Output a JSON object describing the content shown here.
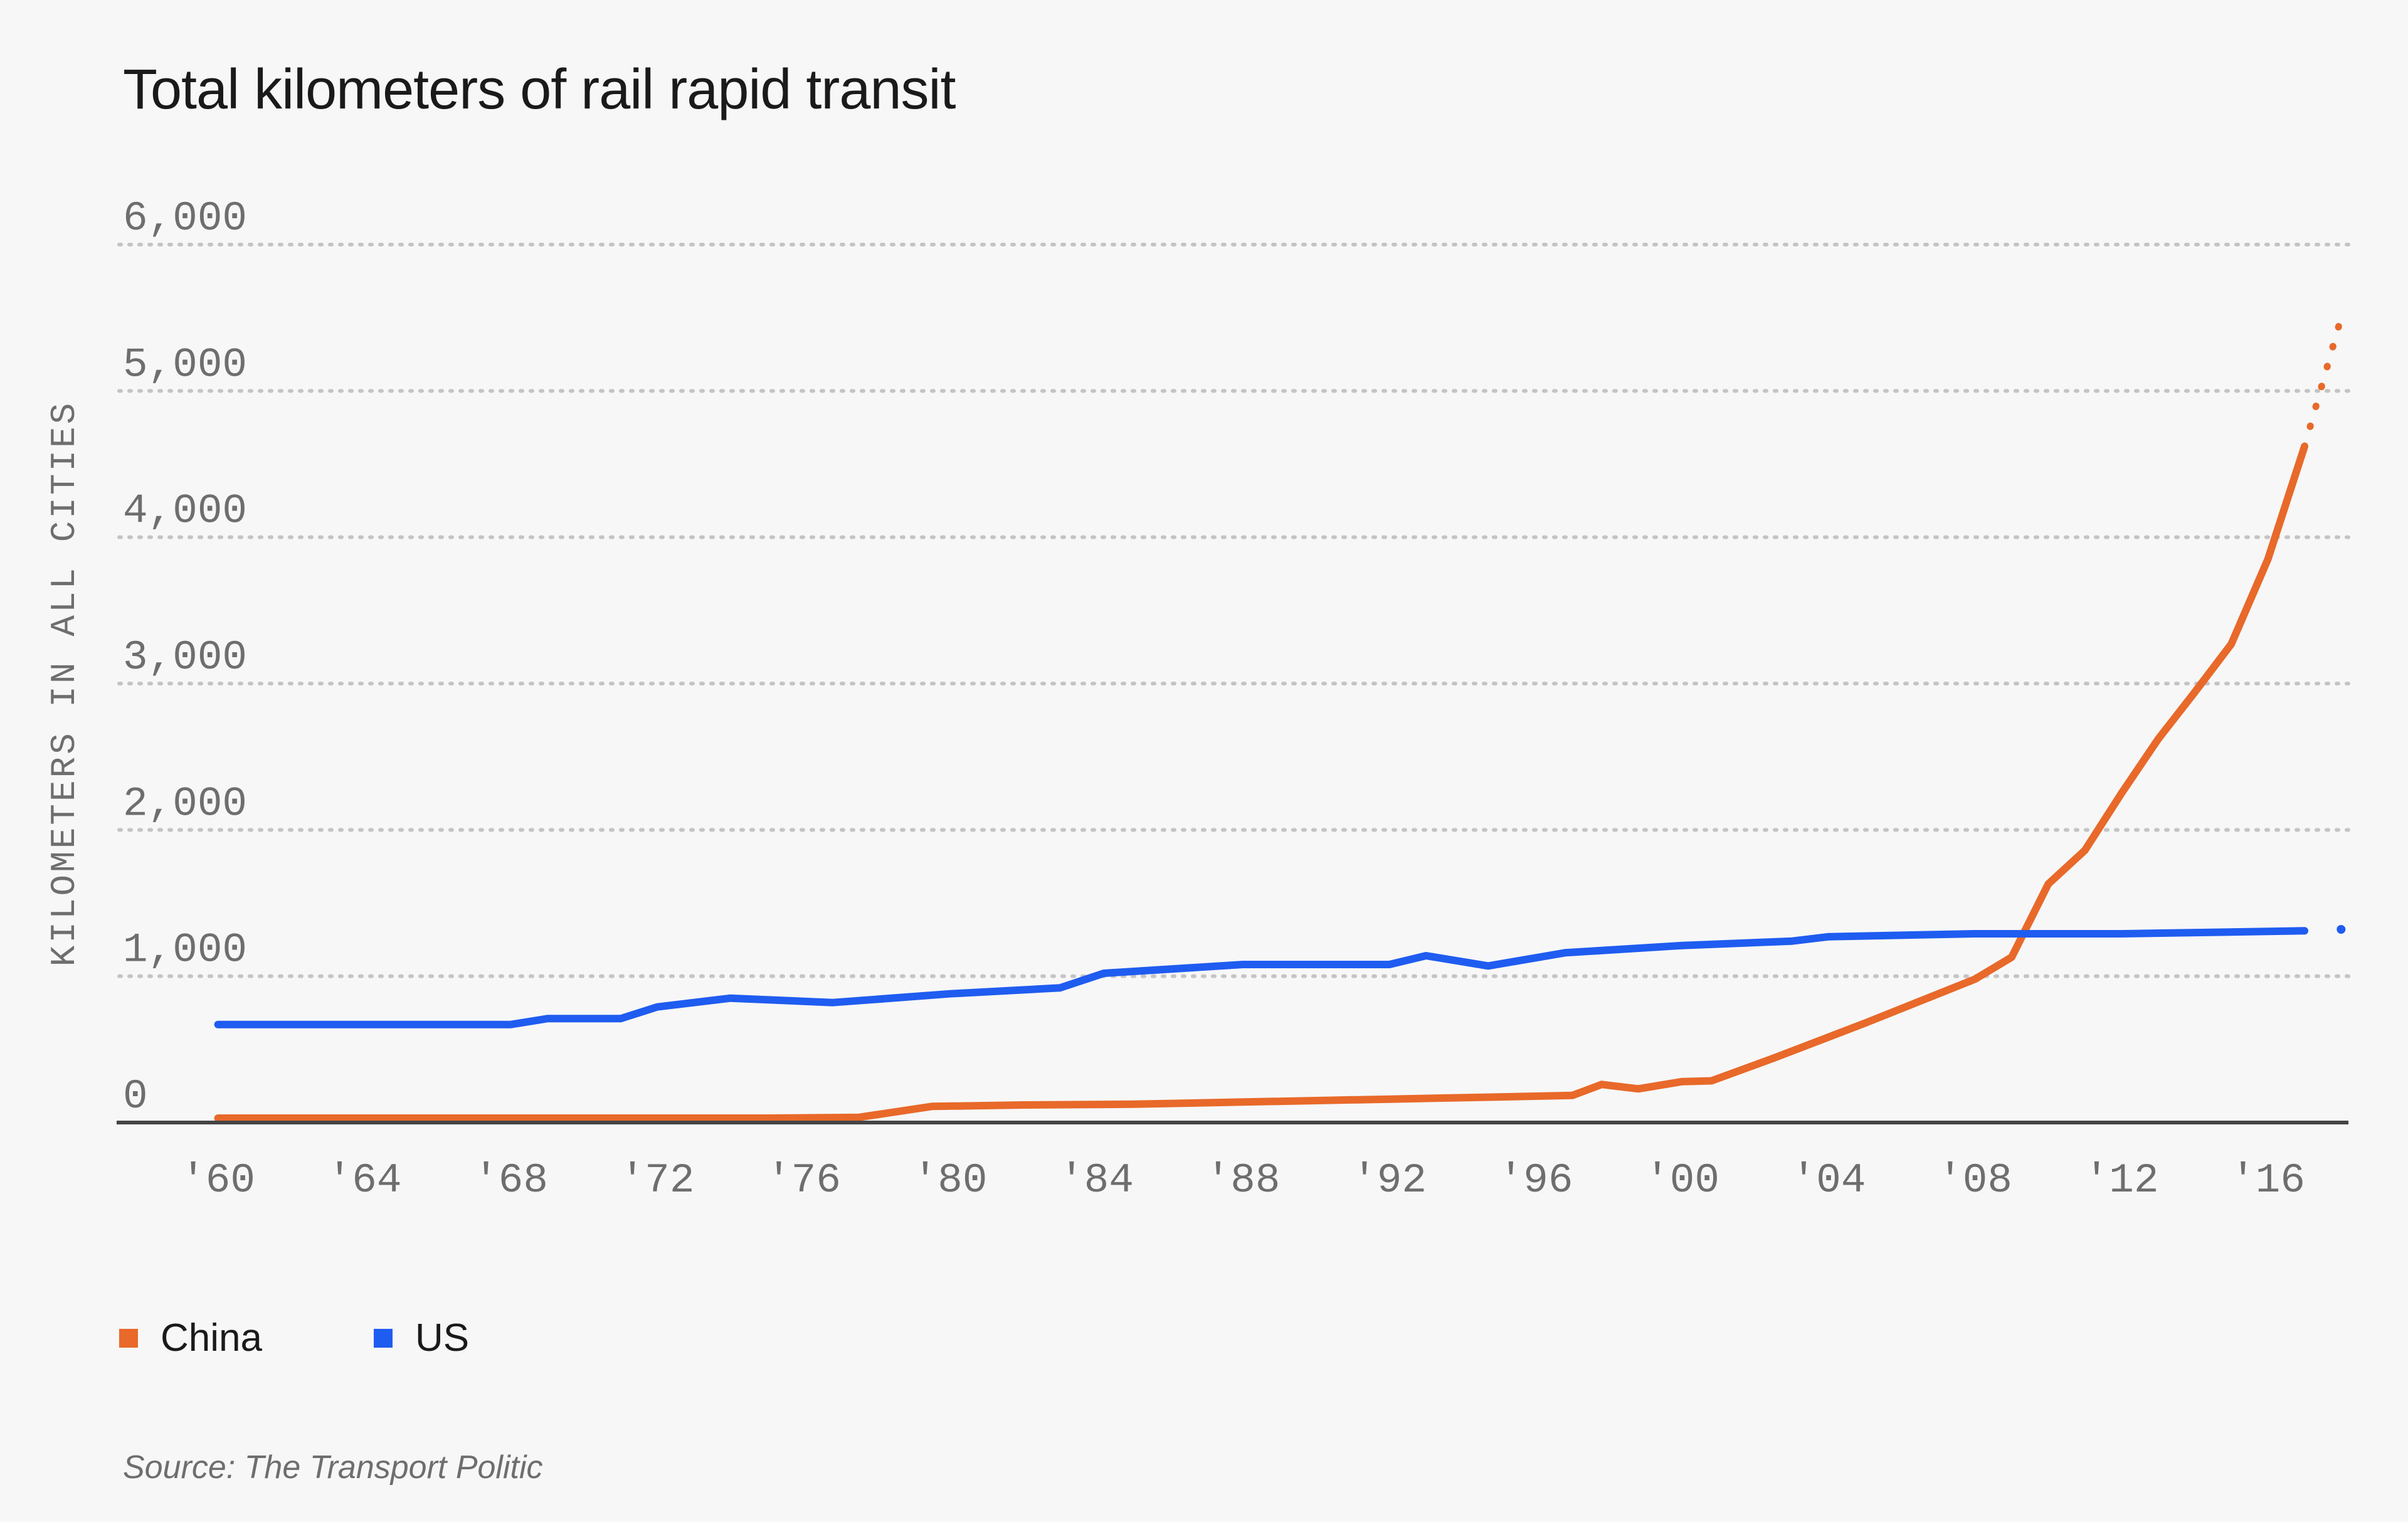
{
  "title": "Total kilometers of rail rapid transit",
  "source": "Source: The Transport Politic",
  "chart_data": {
    "type": "line",
    "title": "Total kilometers of rail rapid transit",
    "xlabel": "",
    "ylabel": "KILOMETERS IN ALL CITIES",
    "xlim": [
      1957.3,
      2018.2
    ],
    "ylim": [
      0,
      6000
    ],
    "x_ticks": [
      {
        "value": 1960,
        "label": "'60"
      },
      {
        "value": 1964,
        "label": "'64"
      },
      {
        "value": 1968,
        "label": "'68"
      },
      {
        "value": 1972,
        "label": "'72"
      },
      {
        "value": 1976,
        "label": "'76"
      },
      {
        "value": 1980,
        "label": "'80"
      },
      {
        "value": 1984,
        "label": "'84"
      },
      {
        "value": 1988,
        "label": "'88"
      },
      {
        "value": 1992,
        "label": "'92"
      },
      {
        "value": 1996,
        "label": "'96"
      },
      {
        "value": 2000,
        "label": "'00"
      },
      {
        "value": 2004,
        "label": "'04"
      },
      {
        "value": 2008,
        "label": "'08"
      },
      {
        "value": 2012,
        "label": "'12"
      },
      {
        "value": 2016,
        "label": "'16"
      }
    ],
    "y_ticks": [
      {
        "value": 0,
        "label": "0"
      },
      {
        "value": 1000,
        "label": "1,000"
      },
      {
        "value": 2000,
        "label": "2,000"
      },
      {
        "value": 3000,
        "label": "3,000"
      },
      {
        "value": 4000,
        "label": "4,000"
      },
      {
        "value": 5000,
        "label": "5,000"
      },
      {
        "value": 6000,
        "label": "6,000"
      }
    ],
    "grid": "horizontal dotted",
    "legend": "bottom-left",
    "series": [
      {
        "name": "China",
        "color": "#e8692a",
        "points": [
          [
            1960,
            30
          ],
          [
            1965,
            30
          ],
          [
            1970,
            30
          ],
          [
            1975,
            30
          ],
          [
            1977.5,
            35
          ],
          [
            1979.5,
            110
          ],
          [
            1982,
            120
          ],
          [
            1985,
            125
          ],
          [
            1988,
            140
          ],
          [
            1992,
            160
          ],
          [
            1995,
            175
          ],
          [
            1997,
            185
          ],
          [
            1997.8,
            260
          ],
          [
            1998.8,
            230
          ],
          [
            2000,
            280
          ],
          [
            2000.8,
            285
          ],
          [
            2002.5,
            440
          ],
          [
            2005,
            680
          ],
          [
            2007,
            880
          ],
          [
            2008,
            980
          ],
          [
            2009,
            1130
          ],
          [
            2010,
            1630
          ],
          [
            2011,
            1860
          ],
          [
            2012,
            2250
          ],
          [
            2013,
            2620
          ],
          [
            2014,
            2940
          ],
          [
            2015,
            3270
          ],
          [
            2016,
            3850
          ],
          [
            2017,
            4620
          ]
        ],
        "projected": [
          [
            2017,
            4620
          ],
          [
            2018,
            5500
          ]
        ]
      },
      {
        "name": "US",
        "color": "#1f5cf0",
        "points": [
          [
            1960,
            670
          ],
          [
            1964,
            670
          ],
          [
            1968,
            670
          ],
          [
            1969,
            710
          ],
          [
            1971,
            710
          ],
          [
            1972,
            790
          ],
          [
            1974,
            850
          ],
          [
            1976.8,
            820
          ],
          [
            1980,
            880
          ],
          [
            1983,
            920
          ],
          [
            1984.2,
            1020
          ],
          [
            1988,
            1080
          ],
          [
            1992,
            1080
          ],
          [
            1993,
            1140
          ],
          [
            1994.7,
            1070
          ],
          [
            1996.8,
            1160
          ],
          [
            2000,
            1210
          ],
          [
            2003,
            1240
          ],
          [
            2004,
            1270
          ],
          [
            2008,
            1290
          ],
          [
            2012,
            1290
          ],
          [
            2017,
            1310
          ]
        ],
        "projected": [
          [
            2018,
            1320
          ]
        ]
      }
    ]
  }
}
